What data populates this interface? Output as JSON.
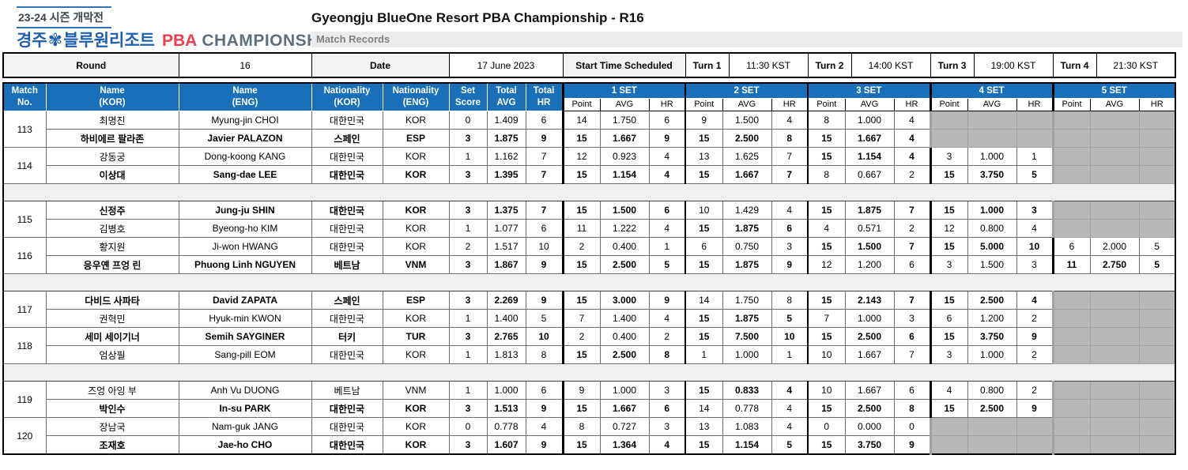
{
  "branding": {
    "season_label": "23-24 시즌 개막전",
    "logo_city": "경주",
    "flower_icon": "✾",
    "logo_resort": "블루원리조트",
    "logo_pba": "PBA",
    "logo_championship": "CHAMPIONSHIP"
  },
  "header": {
    "title": "Gyeongju BlueOne Resort PBA Championship - R16",
    "subtitle": "Match Records"
  },
  "info_bar": {
    "round_label": "Round",
    "round_value": "16",
    "date_label": "Date",
    "date_value": "17 June 2023",
    "start_time_label": "Start Time Scheduled",
    "turns": [
      {
        "label": "Turn 1",
        "time": "11:30 KST"
      },
      {
        "label": "Turn 2",
        "time": "14:00 KST"
      },
      {
        "label": "Turn 3",
        "time": "19:00 KST"
      },
      {
        "label": "Turn 4",
        "time": "21:30 KST"
      }
    ]
  },
  "colors": {
    "header_blue": "#1a70b8",
    "pba_red": "#e8404f",
    "logo_blue": "#1d5fae",
    "championship_gray": "#5e6f80",
    "empty_cell_gray": "#b8b8b8",
    "separator_gray": "#f0f0f0"
  },
  "table": {
    "columns": {
      "match_no": [
        "Match",
        "No."
      ],
      "name_kor": [
        "Name",
        "(KOR)"
      ],
      "name_eng": [
        "Name",
        "(ENG)"
      ],
      "nat_kor": [
        "Nationality",
        "(KOR)"
      ],
      "nat_eng": [
        "Nationality",
        "(ENG)"
      ],
      "set_score": [
        "Set",
        "Score"
      ],
      "total_avg": [
        "Total",
        "AVG"
      ],
      "total_hr": [
        "Total",
        "HR"
      ]
    },
    "set_headers": [
      "1 SET",
      "2 SET",
      "3 SET",
      "4 SET",
      "5 SET"
    ],
    "sub_headers": [
      "Point",
      "AVG",
      "HR"
    ],
    "matches": [
      {
        "no": "113",
        "players": [
          {
            "name_kor": "최명진",
            "name_eng": "Myung-jin CHOI",
            "nat_kor": "대한민국",
            "nat_eng": "KOR",
            "set_score": "0",
            "total_avg": "1.409",
            "total_hr": "6",
            "winner": false,
            "sets": [
              {
                "point": "14",
                "avg": "1.750",
                "hr": "6",
                "w": false
              },
              {
                "point": "9",
                "avg": "1.500",
                "hr": "4",
                "w": false
              },
              {
                "point": "8",
                "avg": "1.000",
                "hr": "4",
                "w": false
              },
              null,
              null
            ]
          },
          {
            "name_kor": "하비에르 팔라존",
            "name_eng": "Javier PALAZON",
            "nat_kor": "스페인",
            "nat_eng": "ESP",
            "set_score": "3",
            "total_avg": "1.875",
            "total_hr": "9",
            "winner": true,
            "sets": [
              {
                "point": "15",
                "avg": "1.667",
                "hr": "9",
                "w": true
              },
              {
                "point": "15",
                "avg": "2.500",
                "hr": "8",
                "w": true
              },
              {
                "point": "15",
                "avg": "1.667",
                "hr": "4",
                "w": true
              },
              null,
              null
            ]
          }
        ]
      },
      {
        "no": "114",
        "players": [
          {
            "name_kor": "강동궁",
            "name_eng": "Dong-koong KANG",
            "nat_kor": "대한민국",
            "nat_eng": "KOR",
            "set_score": "1",
            "total_avg": "1.162",
            "total_hr": "7",
            "winner": false,
            "sets": [
              {
                "point": "12",
                "avg": "0.923",
                "hr": "4",
                "w": false
              },
              {
                "point": "13",
                "avg": "1.625",
                "hr": "7",
                "w": false
              },
              {
                "point": "15",
                "avg": "1.154",
                "hr": "4",
                "w": true
              },
              {
                "point": "3",
                "avg": "1.000",
                "hr": "1",
                "w": false
              },
              null
            ]
          },
          {
            "name_kor": "이상대",
            "name_eng": "Sang-dae LEE",
            "nat_kor": "대한민국",
            "nat_eng": "KOR",
            "set_score": "3",
            "total_avg": "1.395",
            "total_hr": "7",
            "winner": true,
            "sets": [
              {
                "point": "15",
                "avg": "1.154",
                "hr": "4",
                "w": true
              },
              {
                "point": "15",
                "avg": "1.667",
                "hr": "7",
                "w": true
              },
              {
                "point": "8",
                "avg": "0.667",
                "hr": "2",
                "w": false
              },
              {
                "point": "15",
                "avg": "3.750",
                "hr": "5",
                "w": true
              },
              null
            ]
          }
        ]
      },
      {
        "no": "115",
        "players": [
          {
            "name_kor": "신정주",
            "name_eng": "Jung-ju SHIN",
            "nat_kor": "대한민국",
            "nat_eng": "KOR",
            "set_score": "3",
            "total_avg": "1.375",
            "total_hr": "7",
            "winner": true,
            "sets": [
              {
                "point": "15",
                "avg": "1.500",
                "hr": "6",
                "w": true
              },
              {
                "point": "10",
                "avg": "1.429",
                "hr": "4",
                "w": false
              },
              {
                "point": "15",
                "avg": "1.875",
                "hr": "7",
                "w": true
              },
              {
                "point": "15",
                "avg": "1.000",
                "hr": "3",
                "w": true
              },
              null
            ]
          },
          {
            "name_kor": "김병호",
            "name_eng": "Byeong-ho KIM",
            "nat_kor": "대한민국",
            "nat_eng": "KOR",
            "set_score": "1",
            "total_avg": "1.077",
            "total_hr": "6",
            "winner": false,
            "sets": [
              {
                "point": "11",
                "avg": "1.222",
                "hr": "4",
                "w": false
              },
              {
                "point": "15",
                "avg": "1.875",
                "hr": "6",
                "w": true
              },
              {
                "point": "4",
                "avg": "0.571",
                "hr": "2",
                "w": false
              },
              {
                "point": "12",
                "avg": "0.800",
                "hr": "4",
                "w": false
              },
              null
            ]
          }
        ]
      },
      {
        "no": "116",
        "players": [
          {
            "name_kor": "황지원",
            "name_eng": "Ji-won HWANG",
            "nat_kor": "대한민국",
            "nat_eng": "KOR",
            "set_score": "2",
            "total_avg": "1.517",
            "total_hr": "10",
            "winner": false,
            "sets": [
              {
                "point": "2",
                "avg": "0.400",
                "hr": "1",
                "w": false
              },
              {
                "point": "6",
                "avg": "0.750",
                "hr": "3",
                "w": false
              },
              {
                "point": "15",
                "avg": "1.500",
                "hr": "7",
                "w": true
              },
              {
                "point": "15",
                "avg": "5.000",
                "hr": "10",
                "w": true
              },
              {
                "point": "6",
                "avg": "2.000",
                "hr": "5",
                "w": false
              }
            ]
          },
          {
            "name_kor": "응우옌 프엉 린",
            "name_eng": "Phuong Linh NGUYEN",
            "nat_kor": "베트남",
            "nat_eng": "VNM",
            "set_score": "3",
            "total_avg": "1.867",
            "total_hr": "9",
            "winner": true,
            "sets": [
              {
                "point": "15",
                "avg": "2.500",
                "hr": "5",
                "w": true
              },
              {
                "point": "15",
                "avg": "1.875",
                "hr": "9",
                "w": true
              },
              {
                "point": "12",
                "avg": "1.200",
                "hr": "6",
                "w": false
              },
              {
                "point": "3",
                "avg": "1.500",
                "hr": "3",
                "w": false
              },
              {
                "point": "11",
                "avg": "2.750",
                "hr": "5",
                "w": true
              }
            ]
          }
        ]
      },
      {
        "no": "117",
        "players": [
          {
            "name_kor": "다비드 사파타",
            "name_eng": "David ZAPATA",
            "nat_kor": "스페인",
            "nat_eng": "ESP",
            "set_score": "3",
            "total_avg": "2.269",
            "total_hr": "9",
            "winner": true,
            "sets": [
              {
                "point": "15",
                "avg": "3.000",
                "hr": "9",
                "w": true
              },
              {
                "point": "14",
                "avg": "1.750",
                "hr": "8",
                "w": false
              },
              {
                "point": "15",
                "avg": "2.143",
                "hr": "7",
                "w": true
              },
              {
                "point": "15",
                "avg": "2.500",
                "hr": "4",
                "w": true
              },
              null
            ]
          },
          {
            "name_kor": "권혁민",
            "name_eng": "Hyuk-min KWON",
            "nat_kor": "대한민국",
            "nat_eng": "KOR",
            "set_score": "1",
            "total_avg": "1.400",
            "total_hr": "5",
            "winner": false,
            "sets": [
              {
                "point": "7",
                "avg": "1.400",
                "hr": "4",
                "w": false
              },
              {
                "point": "15",
                "avg": "1.875",
                "hr": "5",
                "w": true
              },
              {
                "point": "7",
                "avg": "1.000",
                "hr": "3",
                "w": false
              },
              {
                "point": "6",
                "avg": "1.200",
                "hr": "2",
                "w": false
              },
              null
            ]
          }
        ]
      },
      {
        "no": "118",
        "players": [
          {
            "name_kor": "세미 세이기너",
            "name_eng": "Semih SAYGINER",
            "nat_kor": "터키",
            "nat_eng": "TUR",
            "set_score": "3",
            "total_avg": "2.765",
            "total_hr": "10",
            "winner": true,
            "sets": [
              {
                "point": "2",
                "avg": "0.400",
                "hr": "2",
                "w": false
              },
              {
                "point": "15",
                "avg": "7.500",
                "hr": "10",
                "w": true
              },
              {
                "point": "15",
                "avg": "2.500",
                "hr": "6",
                "w": true
              },
              {
                "point": "15",
                "avg": "3.750",
                "hr": "9",
                "w": true
              },
              null
            ]
          },
          {
            "name_kor": "엄상필",
            "name_eng": "Sang-pill EOM",
            "nat_kor": "대한민국",
            "nat_eng": "KOR",
            "set_score": "1",
            "total_avg": "1.813",
            "total_hr": "8",
            "winner": false,
            "sets": [
              {
                "point": "15",
                "avg": "2.500",
                "hr": "8",
                "w": true
              },
              {
                "point": "1",
                "avg": "1.000",
                "hr": "1",
                "w": false
              },
              {
                "point": "10",
                "avg": "1.667",
                "hr": "7",
                "w": false
              },
              {
                "point": "3",
                "avg": "1.000",
                "hr": "2",
                "w": false
              },
              null
            ]
          }
        ]
      },
      {
        "no": "119",
        "players": [
          {
            "name_kor": "즈엉 아잉 부",
            "name_eng": "Anh Vu DUONG",
            "nat_kor": "베트남",
            "nat_eng": "VNM",
            "set_score": "1",
            "total_avg": "1.000",
            "total_hr": "6",
            "winner": false,
            "sets": [
              {
                "point": "9",
                "avg": "1.000",
                "hr": "3",
                "w": false
              },
              {
                "point": "15",
                "avg": "0.833",
                "hr": "4",
                "w": true
              },
              {
                "point": "10",
                "avg": "1.667",
                "hr": "6",
                "w": false
              },
              {
                "point": "4",
                "avg": "0.800",
                "hr": "2",
                "w": false
              },
              null
            ]
          },
          {
            "name_kor": "박인수",
            "name_eng": "In-su PARK",
            "nat_kor": "대한민국",
            "nat_eng": "KOR",
            "set_score": "3",
            "total_avg": "1.513",
            "total_hr": "9",
            "winner": true,
            "sets": [
              {
                "point": "15",
                "avg": "1.667",
                "hr": "6",
                "w": true
              },
              {
                "point": "14",
                "avg": "0.778",
                "hr": "4",
                "w": false
              },
              {
                "point": "15",
                "avg": "2.500",
                "hr": "8",
                "w": true
              },
              {
                "point": "15",
                "avg": "2.500",
                "hr": "9",
                "w": true
              },
              null
            ]
          }
        ]
      },
      {
        "no": "120",
        "players": [
          {
            "name_kor": "장남국",
            "name_eng": "Nam-guk JANG",
            "nat_kor": "대한민국",
            "nat_eng": "KOR",
            "set_score": "0",
            "total_avg": "0.778",
            "total_hr": "4",
            "winner": false,
            "sets": [
              {
                "point": "8",
                "avg": "0.727",
                "hr": "3",
                "w": false
              },
              {
                "point": "13",
                "avg": "1.083",
                "hr": "4",
                "w": false
              },
              {
                "point": "0",
                "avg": "0.000",
                "hr": "0",
                "w": false
              },
              null,
              null
            ]
          },
          {
            "name_kor": "조재호",
            "name_eng": "Jae-ho CHO",
            "nat_kor": "대한민국",
            "nat_eng": "KOR",
            "set_score": "3",
            "total_avg": "1.607",
            "total_hr": "9",
            "winner": true,
            "sets": [
              {
                "point": "15",
                "avg": "1.364",
                "hr": "4",
                "w": true
              },
              {
                "point": "15",
                "avg": "1.154",
                "hr": "5",
                "w": true
              },
              {
                "point": "15",
                "avg": "3.750",
                "hr": "9",
                "w": true
              },
              null,
              null
            ]
          }
        ]
      }
    ]
  }
}
